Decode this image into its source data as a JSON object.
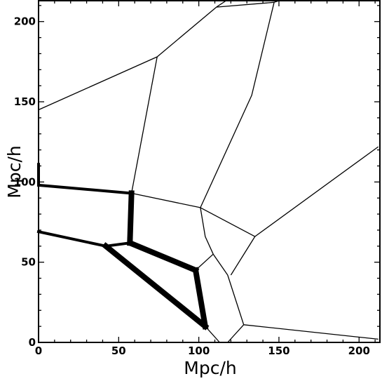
{
  "chart_data": {
    "type": "line",
    "title": "",
    "xlabel": "Mpc/h",
    "ylabel": "Mpc/h",
    "xlim": [
      0,
      213
    ],
    "ylim": [
      0,
      213
    ],
    "xticks": [
      0,
      50,
      100,
      150,
      200
    ],
    "yticks": [
      0,
      50,
      100,
      150,
      200
    ],
    "grid": false,
    "segments": [
      {
        "points": [
          [
            0,
            145
          ],
          [
            74,
            178
          ]
        ],
        "weight": "thin"
      },
      {
        "points": [
          [
            74,
            178
          ],
          [
            111,
            209
          ]
        ],
        "weight": "thin"
      },
      {
        "points": [
          [
            111,
            209
          ],
          [
            147,
            212
          ]
        ],
        "weight": "thin"
      },
      {
        "points": [
          [
            111,
            209
          ],
          [
            117,
            213
          ]
        ],
        "weight": "thin"
      },
      {
        "points": [
          [
            147,
            212
          ],
          [
            150,
            213
          ]
        ],
        "weight": "thin"
      },
      {
        "points": [
          [
            74,
            178
          ],
          [
            58,
            93
          ]
        ],
        "weight": "thin"
      },
      {
        "points": [
          [
            147,
            212
          ],
          [
            133,
            154
          ],
          [
            101,
            84
          ]
        ],
        "weight": "thin"
      },
      {
        "points": [
          [
            0,
            98
          ],
          [
            58,
            93
          ]
        ],
        "weight": "thick"
      },
      {
        "points": [
          [
            0,
            111
          ],
          [
            0,
            98
          ]
        ],
        "weight": "thick"
      },
      {
        "points": [
          [
            58,
            93
          ],
          [
            101,
            84
          ]
        ],
        "weight": "thin"
      },
      {
        "points": [
          [
            101,
            84
          ],
          [
            104,
            66
          ],
          [
            109,
            55
          ]
        ],
        "weight": "thin"
      },
      {
        "points": [
          [
            101,
            84
          ],
          [
            135,
            66
          ],
          [
            212,
            122
          ]
        ],
        "weight": "thin"
      },
      {
        "points": [
          [
            109,
            55
          ],
          [
            118,
            42
          ]
        ],
        "weight": "thin"
      },
      {
        "points": [
          [
            135,
            66
          ],
          [
            120,
            42
          ]
        ],
        "weight": "thin"
      },
      {
        "points": [
          [
            58,
            93
          ],
          [
            57,
            62
          ]
        ],
        "weight": "heavy"
      },
      {
        "points": [
          [
            57,
            62
          ],
          [
            98,
            45
          ]
        ],
        "weight": "heavy"
      },
      {
        "points": [
          [
            98,
            45
          ],
          [
            109,
            55
          ]
        ],
        "weight": "thin"
      },
      {
        "points": [
          [
            0,
            69
          ],
          [
            42,
            60
          ]
        ],
        "weight": "thick"
      },
      {
        "points": [
          [
            42,
            60
          ],
          [
            57,
            62
          ]
        ],
        "weight": "thick"
      },
      {
        "points": [
          [
            42,
            60
          ],
          [
            104,
            10
          ]
        ],
        "weight": "heavy"
      },
      {
        "points": [
          [
            98,
            45
          ],
          [
            104,
            10
          ]
        ],
        "weight": "heavy"
      },
      {
        "points": [
          [
            104,
            10
          ],
          [
            113,
            0
          ]
        ],
        "weight": "thin"
      },
      {
        "points": [
          [
            118,
            42
          ],
          [
            128,
            11
          ],
          [
            118,
            0
          ]
        ],
        "weight": "thin"
      },
      {
        "points": [
          [
            128,
            11
          ],
          [
            212,
            2
          ]
        ],
        "weight": "thin"
      }
    ]
  }
}
